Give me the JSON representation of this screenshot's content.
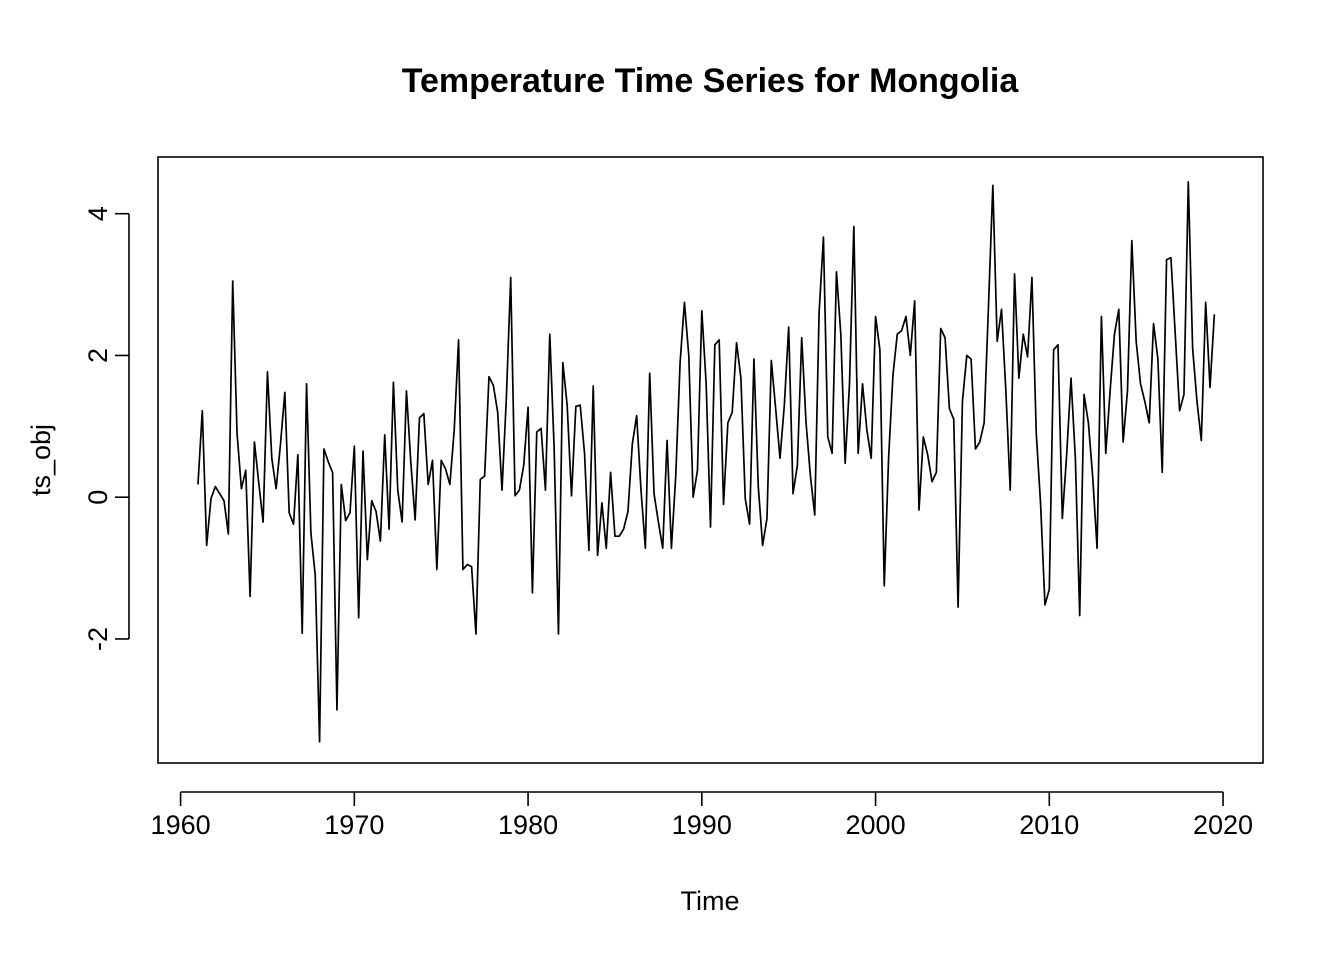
{
  "chart_data": {
    "type": "line",
    "title": "Temperature Time Series for Mongolia",
    "xlabel": "Time",
    "ylabel": "ts_obj",
    "xlim": [
      1958.7,
      1922.3
    ],
    "ylim": [
      -3.75,
      4.8
    ],
    "x_ticks": [
      1960,
      1970,
      1980,
      1990,
      2000,
      2010,
      2020
    ],
    "x_tick_labels": [
      "1960",
      "1970",
      "1980",
      "1990",
      "2000",
      "2010",
      "2020"
    ],
    "y_ticks": [
      -2,
      0,
      2,
      4
    ],
    "y_tick_labels": [
      "-2",
      "0",
      "2",
      "4"
    ],
    "grid": false,
    "legend": "none",
    "frequency": 4,
    "start": 1961.0,
    "series": [
      {
        "values": [
          0.18,
          1.22,
          -0.68,
          -0.02,
          0.15,
          0.05,
          -0.05,
          -0.52,
          3.05,
          0.9,
          0.12,
          0.38,
          -1.4,
          0.78,
          0.2,
          -0.35,
          1.77,
          0.55,
          0.12,
          0.75,
          1.48,
          -0.22,
          -0.38,
          0.6,
          -1.92,
          1.6,
          -0.5,
          -1.1,
          -3.45,
          0.68,
          0.5,
          0.35,
          -3.0,
          0.18,
          -0.33,
          -0.22,
          0.72,
          -1.7,
          0.65,
          -0.88,
          -0.05,
          -0.2,
          -0.62,
          0.88,
          -0.45,
          1.62,
          0.1,
          -0.35,
          1.5,
          0.5,
          -0.32,
          1.12,
          1.18,
          0.18,
          0.52,
          -1.02,
          0.52,
          0.4,
          0.18,
          0.95,
          2.22,
          -1.02,
          -0.95,
          -0.98,
          -1.93,
          0.25,
          0.3,
          1.7,
          1.58,
          1.2,
          0.1,
          1.4,
          3.1,
          0.02,
          0.1,
          0.45,
          1.27,
          -1.35,
          0.92,
          0.97,
          0.1,
          2.3,
          0.7,
          -1.93,
          1.9,
          1.3,
          0.02,
          1.28,
          1.3,
          0.62,
          -0.75,
          1.57,
          -0.82,
          -0.08,
          -0.72,
          0.35,
          -0.55,
          -0.55,
          -0.45,
          -0.2,
          0.75,
          1.15,
          0.1,
          -0.72,
          1.75,
          0.05,
          -0.35,
          -0.72,
          0.8,
          -0.72,
          0.3,
          1.9,
          2.75,
          2.0,
          0.0,
          0.38,
          2.63,
          1.6,
          -0.42,
          2.15,
          2.22,
          -0.1,
          1.05,
          1.2,
          2.18,
          1.68,
          -0.02,
          -0.38,
          1.95,
          0.15,
          -0.68,
          -0.3,
          1.93,
          1.25,
          0.55,
          1.3,
          2.4,
          0.05,
          0.45,
          2.25,
          1.05,
          0.3,
          -0.25,
          2.6,
          3.67,
          0.85,
          0.62,
          3.18,
          2.3,
          0.48,
          1.6,
          3.82,
          0.62,
          1.6,
          0.95,
          0.55,
          2.55,
          2.08,
          -1.25,
          0.55,
          1.72,
          2.3,
          2.35,
          2.55,
          2.0,
          2.77,
          -0.18,
          0.85,
          0.6,
          0.22,
          0.35,
          2.38,
          2.25,
          1.25,
          1.1,
          -1.55,
          1.35,
          2.0,
          1.95,
          0.68,
          0.78,
          1.05,
          2.7,
          4.4,
          2.2,
          2.65,
          1.5,
          0.1,
          3.15,
          1.68,
          2.3,
          1.98,
          3.1,
          0.9,
          -0.1,
          -1.52,
          -1.3,
          2.08,
          2.15,
          -0.3,
          0.6,
          1.68,
          0.55,
          -1.67,
          1.45,
          1.05,
          0.28,
          -0.72,
          2.55,
          0.62,
          1.5,
          2.3,
          2.65,
          0.78,
          1.5,
          3.62,
          2.2,
          1.6,
          1.35,
          1.05,
          2.45,
          1.95,
          0.35,
          3.35,
          3.38,
          2.3,
          1.22,
          1.45,
          4.45,
          2.1,
          1.35,
          0.8,
          2.75,
          1.55,
          2.58
        ]
      }
    ]
  }
}
